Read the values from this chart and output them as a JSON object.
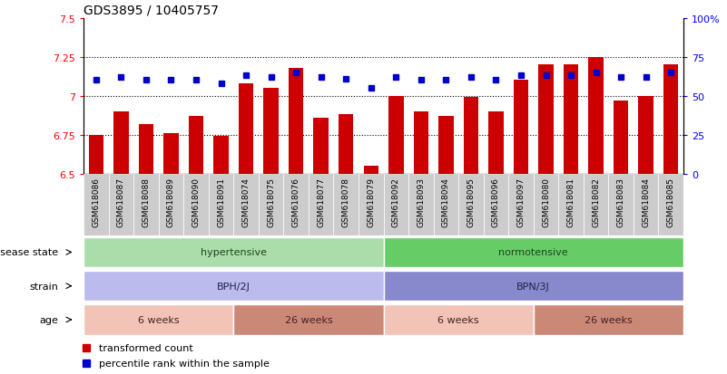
{
  "title": "GDS3895 / 10405757",
  "samples": [
    "GSM618086",
    "GSM618087",
    "GSM618088",
    "GSM618089",
    "GSM618090",
    "GSM618091",
    "GSM618074",
    "GSM618075",
    "GSM618076",
    "GSM618077",
    "GSM618078",
    "GSM618079",
    "GSM618092",
    "GSM618093",
    "GSM618094",
    "GSM618095",
    "GSM618096",
    "GSM618097",
    "GSM618080",
    "GSM618081",
    "GSM618082",
    "GSM618083",
    "GSM618084",
    "GSM618085"
  ],
  "red_values": [
    6.75,
    6.9,
    6.82,
    6.76,
    6.87,
    6.74,
    7.08,
    7.05,
    7.18,
    6.86,
    6.88,
    6.55,
    7.0,
    6.9,
    6.87,
    6.99,
    6.9,
    7.1,
    7.2,
    7.2,
    7.25,
    6.97,
    7.0,
    7.2
  ],
  "blue_values": [
    60,
    62,
    60,
    60,
    60,
    58,
    63,
    62,
    65,
    62,
    61,
    55,
    62,
    60,
    60,
    62,
    60,
    63,
    63,
    63,
    65,
    62,
    62,
    65
  ],
  "ylim_left": [
    6.5,
    7.5
  ],
  "ylim_right": [
    0,
    100
  ],
  "yticks_left": [
    6.5,
    6.75,
    7.0,
    7.25,
    7.5
  ],
  "yticks_right": [
    0,
    25,
    50,
    75,
    100
  ],
  "ytick_labels_left": [
    "6.5",
    "6.75",
    "7",
    "7.25",
    "7.5"
  ],
  "ytick_labels_right": [
    "0",
    "25",
    "50",
    "75",
    "100%"
  ],
  "grid_lines": [
    6.75,
    7.0,
    7.25
  ],
  "bar_color": "#cc0000",
  "dot_color": "#0000cc",
  "disease_state_labels": [
    "hypertensive",
    "normotensive"
  ],
  "disease_state_ranges_idx": [
    [
      0,
      12
    ],
    [
      12,
      24
    ]
  ],
  "disease_state_colors": [
    "#aaddaa",
    "#66cc66"
  ],
  "strain_labels": [
    "BPH/2J",
    "BPN/3J"
  ],
  "strain_ranges_idx": [
    [
      0,
      12
    ],
    [
      12,
      24
    ]
  ],
  "strain_colors": [
    "#bbbbee",
    "#8888cc"
  ],
  "age_labels": [
    "6 weeks",
    "26 weeks",
    "6 weeks",
    "26 weeks"
  ],
  "age_ranges_idx": [
    [
      0,
      6
    ],
    [
      6,
      12
    ],
    [
      12,
      18
    ],
    [
      18,
      24
    ]
  ],
  "age_colors": [
    "#f2c4b8",
    "#cc8877",
    "#f2c4b8",
    "#cc8877"
  ],
  "legend_red": "transformed count",
  "legend_blue": "percentile rank within the sample",
  "row_labels": [
    "disease state",
    "strain",
    "age"
  ],
  "xtick_bg": "#cccccc",
  "bar_bottom": 6.5
}
